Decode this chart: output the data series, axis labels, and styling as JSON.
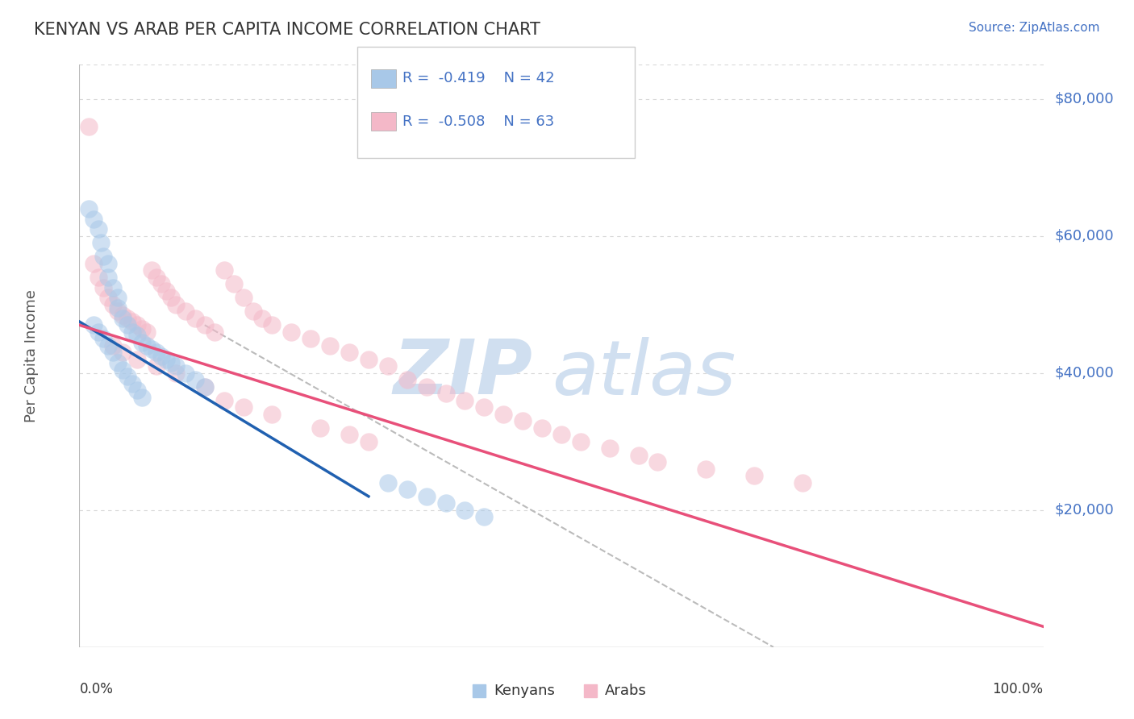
{
  "title": "KENYAN VS ARAB PER CAPITA INCOME CORRELATION CHART",
  "source": "Source: ZipAtlas.com",
  "ylabel": "Per Capita Income",
  "xlim": [
    0,
    1
  ],
  "ylim": [
    0,
    85000
  ],
  "yticks": [
    0,
    20000,
    40000,
    60000,
    80000
  ],
  "ytick_labels": [
    "",
    "$20,000",
    "$40,000",
    "$60,000",
    "$80,000"
  ],
  "xtick_labels": [
    "0.0%",
    "100.0%"
  ],
  "blue_R": -0.419,
  "blue_N": 42,
  "pink_R": -0.508,
  "pink_N": 63,
  "blue_color": "#a8c8e8",
  "pink_color": "#f4b8c8",
  "blue_line_color": "#2060b0",
  "pink_line_color": "#e8507a",
  "tick_color": "#4472c4",
  "watermark_color": "#d0dff0",
  "legend_R_color": "#4472c4",
  "grid_color": "#d8d8d8",
  "blue_line_x0": 0.0,
  "blue_line_y0": 47500,
  "blue_line_x1": 0.3,
  "blue_line_y1": 22000,
  "pink_line_x0": 0.0,
  "pink_line_y0": 47000,
  "pink_line_x1": 1.0,
  "pink_line_y1": 3000,
  "dash_line_x0": 0.13,
  "dash_line_y0": 47000,
  "dash_line_x1": 0.72,
  "dash_line_y1": 0,
  "blue_scatter_x": [
    0.01,
    0.015,
    0.02,
    0.022,
    0.025,
    0.03,
    0.03,
    0.035,
    0.04,
    0.04,
    0.045,
    0.05,
    0.055,
    0.06,
    0.065,
    0.07,
    0.075,
    0.08,
    0.085,
    0.09,
    0.095,
    0.1,
    0.11,
    0.12,
    0.13,
    0.015,
    0.02,
    0.025,
    0.03,
    0.035,
    0.04,
    0.045,
    0.05,
    0.055,
    0.06,
    0.065,
    0.32,
    0.34,
    0.36,
    0.38,
    0.4,
    0.42
  ],
  "blue_scatter_y": [
    64000,
    62500,
    61000,
    59000,
    57000,
    56000,
    54000,
    52500,
    51000,
    49500,
    48000,
    47000,
    46000,
    45500,
    44500,
    44000,
    43500,
    43000,
    42500,
    42000,
    41500,
    41000,
    40000,
    39000,
    38000,
    47000,
    46000,
    45000,
    44000,
    43000,
    41500,
    40500,
    39500,
    38500,
    37500,
    36500,
    24000,
    23000,
    22000,
    21000,
    20000,
    19000
  ],
  "pink_scatter_x": [
    0.01,
    0.015,
    0.02,
    0.025,
    0.03,
    0.035,
    0.04,
    0.045,
    0.05,
    0.055,
    0.06,
    0.065,
    0.07,
    0.075,
    0.08,
    0.085,
    0.09,
    0.095,
    0.1,
    0.11,
    0.12,
    0.13,
    0.14,
    0.15,
    0.16,
    0.17,
    0.18,
    0.19,
    0.2,
    0.22,
    0.24,
    0.26,
    0.28,
    0.3,
    0.32,
    0.34,
    0.36,
    0.38,
    0.4,
    0.42,
    0.44,
    0.46,
    0.48,
    0.5,
    0.52,
    0.55,
    0.6,
    0.65,
    0.7,
    0.75,
    0.035,
    0.045,
    0.06,
    0.08,
    0.1,
    0.13,
    0.15,
    0.17,
    0.2,
    0.25,
    0.28,
    0.3,
    0.58
  ],
  "pink_scatter_y": [
    76000,
    56000,
    54000,
    52500,
    51000,
    50000,
    49000,
    48500,
    48000,
    47500,
    47000,
    46500,
    46000,
    55000,
    54000,
    53000,
    52000,
    51000,
    50000,
    49000,
    48000,
    47000,
    46000,
    55000,
    53000,
    51000,
    49000,
    48000,
    47000,
    46000,
    45000,
    44000,
    43000,
    42000,
    41000,
    39000,
    38000,
    37000,
    36000,
    35000,
    34000,
    33000,
    32000,
    31000,
    30000,
    29000,
    27000,
    26000,
    25000,
    24000,
    44000,
    43000,
    42000,
    41000,
    40000,
    38000,
    36000,
    35000,
    34000,
    32000,
    31000,
    30000,
    28000
  ]
}
